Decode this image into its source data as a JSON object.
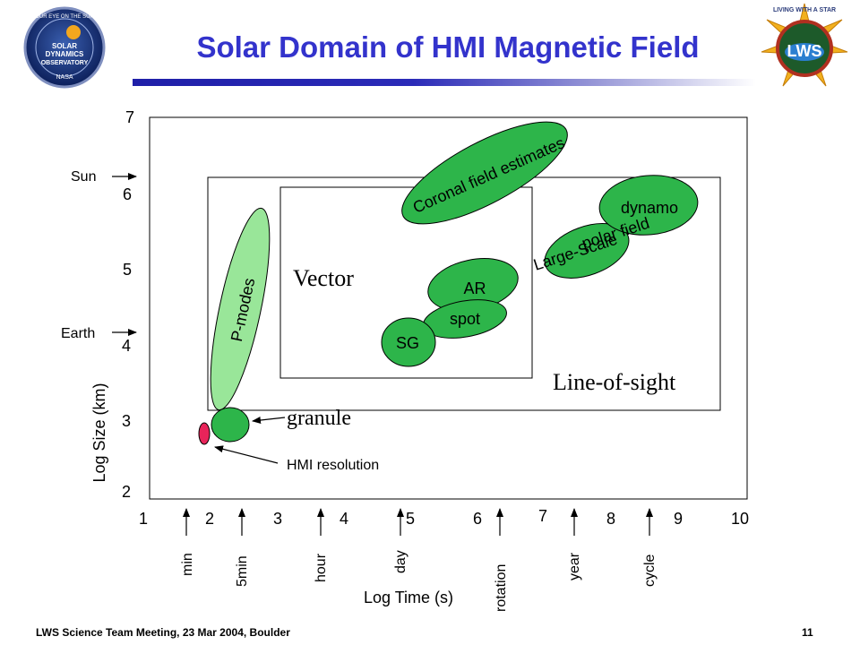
{
  "title": "Solar Domain of HMI Magnetic Field",
  "footer": {
    "left": "LWS Science Team Meeting, 23 Mar 2004, Boulder",
    "page": "11"
  },
  "logos": {
    "left": {
      "text_top": "OUR EYE ON THE SUN",
      "line1": "SOLAR",
      "line2": "DYNAMICS",
      "line3": "OBSERVATORY",
      "line4": "NASA"
    },
    "right": {
      "text_top": "LIVING WITH A STAR",
      "line1": "LWS"
    }
  },
  "axes": {
    "x_label": "Log Time (s)",
    "y_label": "Log Size (km)",
    "x_ticks": [
      "1",
      "2",
      "3",
      "4",
      "5",
      "6",
      "7",
      "8",
      "9",
      "10"
    ],
    "y_ticks": [
      "2",
      "3",
      "4",
      "5",
      "6",
      "7"
    ],
    "x_markers": [
      "min",
      "5min",
      "hour",
      "day",
      "rotation",
      "year",
      "cycle"
    ],
    "y_markers": [
      "Sun",
      "Earth"
    ]
  },
  "regions": {
    "vector": "Vector",
    "line_of_sight": "Line-of-sight"
  },
  "features": {
    "coronal": "Coronal field estimates",
    "dynamo": "dynamo",
    "polar": "polar field",
    "large_scale": "Large-Scale",
    "ar": "AR",
    "spot": "spot",
    "sg": "SG",
    "pmodes": "P-modes",
    "granule": "granule",
    "hmi_resolution": "HMI resolution"
  },
  "colors": {
    "oval_green": "#2db54a",
    "oval_light": "#99e699",
    "hmi_red": "#e8245a",
    "title_blue": "#3333cc"
  }
}
